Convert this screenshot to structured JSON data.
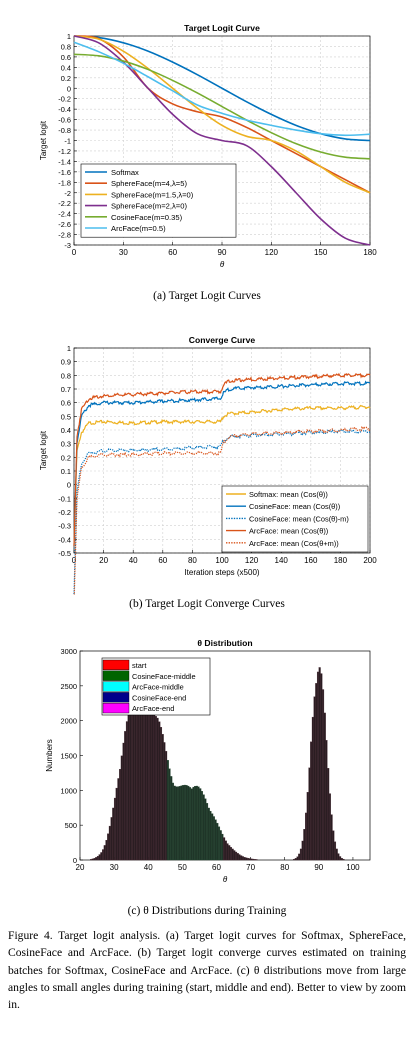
{
  "figure": {
    "caption": "Figure 4. Target logit analysis. (a) Target logit curves for Softmax, SphereFace, CosineFace and ArcFace. (b) Target logit converge curves estimated on training batches for Softmax, CosineFace and ArcFace. (c) θ distributions move from large angles to small angles during training (start, middle and end). Better to view by zoom in."
  },
  "captions": {
    "a": "(a) Target Logit Curves",
    "b": "(b) Target Logit Converge Curves",
    "c": "(c) θ Distributions during Training"
  },
  "colors": {
    "blue": "#0072BD",
    "orange": "#D95319",
    "yellow": "#EDB120",
    "purple": "#7E2F8E",
    "green": "#77AC30",
    "cyan": "#4DBEEE"
  },
  "chart_data": [
    {
      "type": "line",
      "title": "Target Logit Curve",
      "xlabel": "θ",
      "ylabel": "Target logit",
      "xlim": [
        0,
        180
      ],
      "ylim": [
        -3,
        1
      ],
      "xticks": [
        0,
        30,
        60,
        90,
        120,
        150,
        180
      ],
      "yticks": [
        1,
        0.8,
        0.6,
        0.4,
        0.2,
        0,
        -0.2,
        -0.4,
        -0.6,
        -0.8,
        -1,
        -1.2,
        -1.4,
        -1.6,
        -1.8,
        -2,
        -2.2,
        -2.4,
        -2.6,
        -2.8,
        -3
      ],
      "grid": true,
      "legend_position": "bottom-left",
      "x": [
        0,
        15,
        30,
        45,
        60,
        75,
        90,
        105,
        120,
        135,
        150,
        165,
        180
      ],
      "series": [
        {
          "name": "Softmax",
          "color": "#0072BD",
          "values": [
            1.0,
            0.97,
            0.87,
            0.71,
            0.5,
            0.26,
            0.0,
            -0.26,
            -0.5,
            -0.71,
            -0.87,
            -0.97,
            -1.0
          ]
        },
        {
          "name": "SphereFace(m=4,λ=5)",
          "color": "#D95319",
          "values": [
            1.0,
            0.95,
            0.6,
            0.0,
            -0.3,
            -0.45,
            -0.55,
            -0.75,
            -1.0,
            -1.25,
            -1.5,
            -1.75,
            -2.0
          ]
        },
        {
          "name": "SphereFace(m=1.5,λ=0)",
          "color": "#EDB120",
          "values": [
            1.0,
            0.94,
            0.71,
            0.38,
            0.0,
            -0.38,
            -0.71,
            -0.92,
            -1.0,
            -1.2,
            -1.5,
            -1.8,
            -2.0
          ]
        },
        {
          "name": "SphereFace(m=2,λ=0)",
          "color": "#7E2F8E",
          "values": [
            1.0,
            0.87,
            0.5,
            0.0,
            -0.5,
            -0.87,
            -1.0,
            -1.1,
            -1.5,
            -2.0,
            -2.5,
            -2.87,
            -3.0
          ]
        },
        {
          "name": "CosineFace(m=0.35)",
          "color": "#77AC30",
          "values": [
            0.65,
            0.62,
            0.52,
            0.36,
            0.15,
            -0.09,
            -0.35,
            -0.61,
            -0.85,
            -1.06,
            -1.22,
            -1.32,
            -1.35
          ]
        },
        {
          "name": "ArcFace(m=0.5)",
          "color": "#4DBEEE",
          "values": [
            0.88,
            0.7,
            0.48,
            0.22,
            -0.05,
            -0.32,
            -0.48,
            -0.61,
            -0.71,
            -0.8,
            -0.87,
            -0.9,
            -0.88
          ]
        }
      ]
    },
    {
      "type": "line",
      "title": "Converge Curve",
      "xlabel": "Iteration steps (x500)",
      "ylabel": "Target logit",
      "xlim": [
        0,
        200
      ],
      "ylim": [
        -0.5,
        1
      ],
      "xticks": [
        0,
        20,
        40,
        60,
        80,
        100,
        120,
        140,
        160,
        180,
        200
      ],
      "yticks": [
        1,
        0.9,
        0.8,
        0.7,
        0.6,
        0.5,
        0.4,
        0.3,
        0.2,
        0.1,
        0,
        -0.1,
        -0.2,
        -0.3,
        -0.4,
        -0.5
      ],
      "grid": true,
      "legend_position": "bottom-right",
      "x": [
        0,
        2,
        5,
        10,
        20,
        40,
        60,
        80,
        99,
        101,
        105,
        120,
        140,
        160,
        180,
        200
      ],
      "series": [
        {
          "name": "Softmax: mean (Cos(θ))",
          "color": "#EDB120",
          "style": "solid",
          "values": [
            -0.45,
            0.25,
            0.38,
            0.45,
            0.46,
            0.45,
            0.46,
            0.46,
            0.46,
            0.5,
            0.52,
            0.53,
            0.55,
            0.56,
            0.56,
            0.57
          ]
        },
        {
          "name": "CosineFace: mean (Cos(θ))",
          "color": "#0072BD",
          "style": "solid",
          "values": [
            -0.45,
            0.3,
            0.5,
            0.58,
            0.6,
            0.6,
            0.61,
            0.62,
            0.63,
            0.67,
            0.7,
            0.71,
            0.72,
            0.73,
            0.74,
            0.74
          ]
        },
        {
          "name": "CosineFace: mean (Cos(θ)-m)",
          "color": "#0072BD",
          "style": "dotted",
          "values": [
            -0.8,
            -0.05,
            0.15,
            0.23,
            0.25,
            0.25,
            0.26,
            0.27,
            0.28,
            0.32,
            0.35,
            0.36,
            0.37,
            0.38,
            0.39,
            0.39
          ]
        },
        {
          "name": "ArcFace: mean (Cos(θ))",
          "color": "#D95319",
          "style": "solid",
          "values": [
            -0.45,
            0.35,
            0.55,
            0.63,
            0.65,
            0.66,
            0.67,
            0.68,
            0.68,
            0.73,
            0.76,
            0.77,
            0.78,
            0.79,
            0.8,
            0.8
          ]
        },
        {
          "name": "ArcFace: mean (Cos(θ+m))",
          "color": "#D95319",
          "style": "dotted",
          "values": [
            -0.9,
            -0.1,
            0.12,
            0.2,
            0.22,
            0.22,
            0.23,
            0.23,
            0.23,
            0.31,
            0.35,
            0.37,
            0.38,
            0.39,
            0.4,
            0.41
          ]
        }
      ]
    },
    {
      "type": "bar",
      "title": "θ Distribution",
      "xlabel": "θ",
      "ylabel": "Numbers",
      "xlim": [
        20,
        105
      ],
      "ylim": [
        0,
        3000
      ],
      "xticks": [
        20,
        30,
        40,
        50,
        60,
        70,
        80,
        90,
        100
      ],
      "yticks": [
        0,
        500,
        1000,
        1500,
        2000,
        2500,
        3000
      ],
      "legend_position": "top-left",
      "legend": [
        {
          "name": "start",
          "color": "#FF0000"
        },
        {
          "name": "CosineFace-middle",
          "color": "#006400"
        },
        {
          "name": "ArcFace-middle",
          "color": "#00FFFF"
        },
        {
          "name": "CosineFace-end",
          "color": "#00008B"
        },
        {
          "name": "ArcFace-end",
          "color": "#FF00FF"
        }
      ],
      "peaks": [
        {
          "center": 34.5,
          "height": 1870,
          "width": 3.5
        },
        {
          "center": 41.5,
          "height": 1900,
          "width": 3.5
        },
        {
          "center": 53,
          "height": 1100,
          "width": 6
        },
        {
          "center": 90,
          "height": 2900,
          "width": 2.2
        }
      ]
    }
  ]
}
